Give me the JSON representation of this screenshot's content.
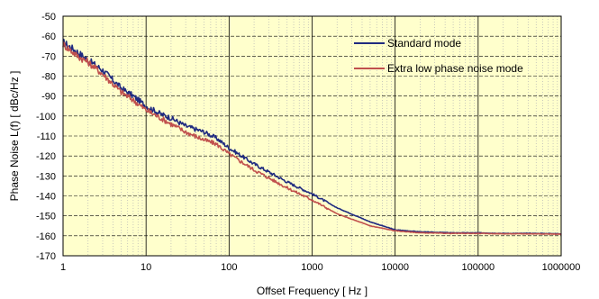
{
  "chart_data": {
    "type": "line",
    "title": "",
    "xlabel": "Offset Frequency [ Hz ]",
    "ylabel": "Phase Noise L(f) [ dBc/Hz ]",
    "xscale": "log",
    "xlim": [
      1,
      1000000
    ],
    "ylim": [
      -170,
      -50
    ],
    "x_ticks": [
      1,
      10,
      100,
      1000,
      10000,
      100000,
      1000000
    ],
    "x_tick_labels": [
      "1",
      "10",
      "100",
      "1000",
      "10000",
      "100000",
      "1000000"
    ],
    "y_ticks": [
      -50,
      -60,
      -70,
      -80,
      -90,
      -100,
      -110,
      -120,
      -130,
      -140,
      -150,
      -160,
      -170
    ],
    "y_tick_labels": [
      "-50",
      "-60",
      "-70",
      "-80",
      "-90",
      "-100",
      "-110",
      "-120",
      "-130",
      "-140",
      "-150",
      "-160",
      "-170"
    ],
    "grid": true,
    "legend_position": "top-right",
    "background_color": "#ffffcc",
    "series": [
      {
        "name": "Standard mode",
        "color": "#1f2a80",
        "x": [
          1,
          1.5,
          2,
          3,
          4,
          5,
          7,
          10,
          15,
          20,
          30,
          50,
          70,
          100,
          200,
          500,
          1000,
          2000,
          5000,
          10000,
          20000,
          50000,
          100000,
          200000,
          500000,
          1000000
        ],
        "y": [
          -63,
          -68,
          -72,
          -77,
          -82,
          -86,
          -90,
          -95,
          -99,
          -101,
          -105,
          -108,
          -111,
          -116,
          -124,
          -133,
          -139,
          -146,
          -153,
          -157,
          -158,
          -158.5,
          -158.5,
          -158.8,
          -158.8,
          -159
        ]
      },
      {
        "name": "Extra low phase noise mode",
        "color": "#c0504d",
        "x": [
          1,
          1.5,
          2,
          3,
          4,
          5,
          7,
          10,
          15,
          20,
          30,
          50,
          70,
          100,
          200,
          500,
          1000,
          2000,
          5000,
          10000,
          20000,
          50000,
          100000,
          200000,
          500000,
          1000000
        ],
        "y": [
          -64,
          -70,
          -73,
          -79,
          -84,
          -88,
          -92,
          -97,
          -101,
          -104,
          -108,
          -112,
          -114,
          -119,
          -127,
          -136,
          -142,
          -149,
          -155,
          -157.5,
          -158.5,
          -158.8,
          -158.8,
          -159,
          -159,
          -159.2
        ]
      }
    ]
  }
}
